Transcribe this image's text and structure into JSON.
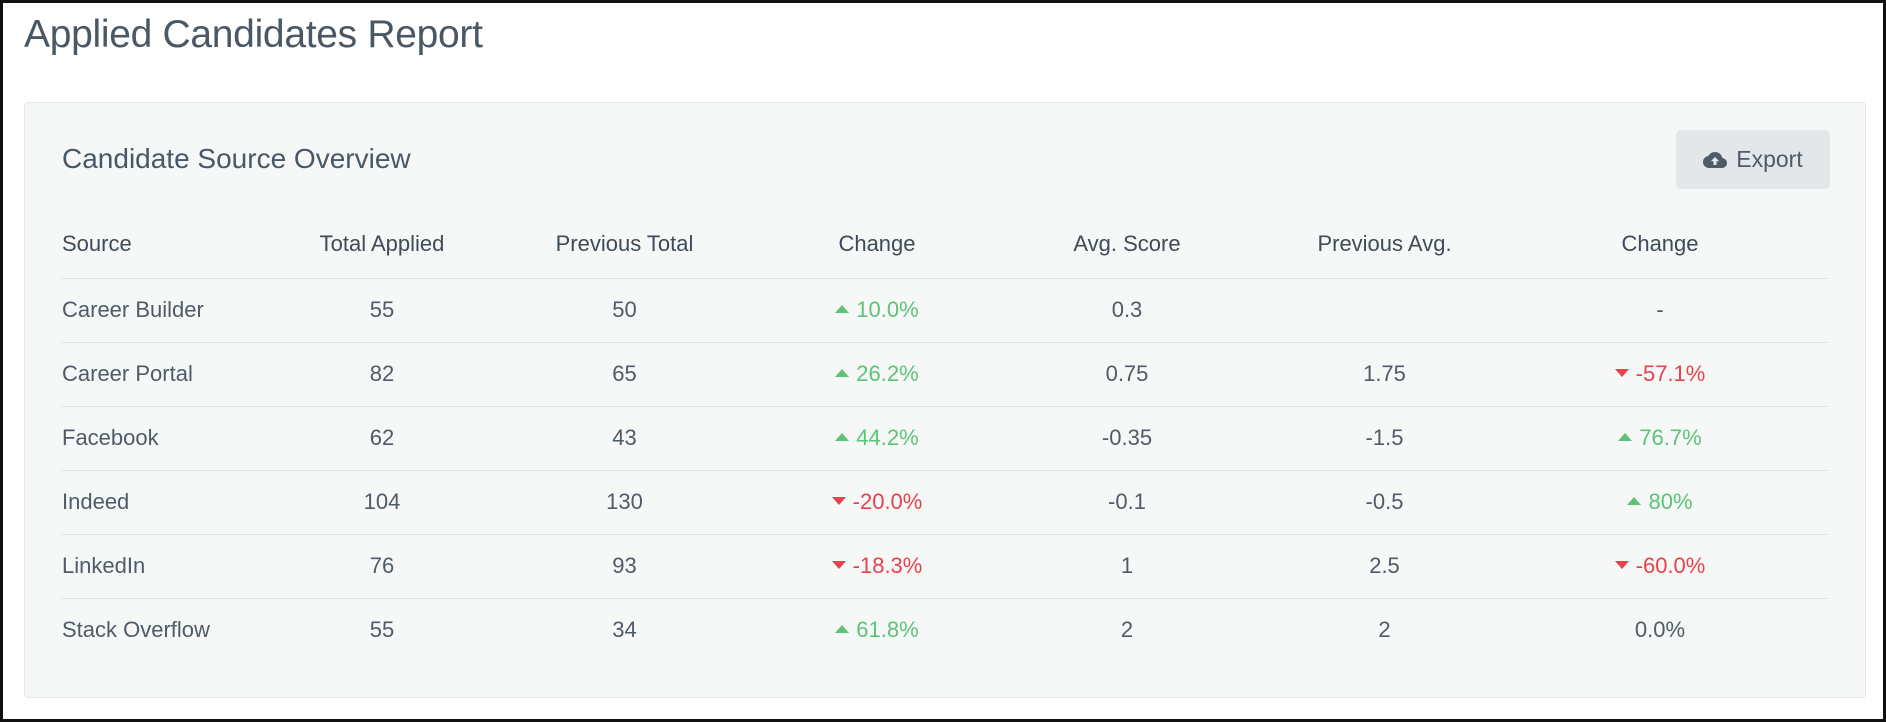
{
  "page": {
    "title": "Applied Candidates Report"
  },
  "panel": {
    "title": "Candidate Source Overview",
    "export_label": "Export"
  },
  "table": {
    "headers": [
      "Source",
      "Total Applied",
      "Previous Total",
      "Change",
      "Avg. Score",
      "Previous Avg.",
      "Change"
    ],
    "rows": [
      {
        "source": "Career Builder",
        "total": "55",
        "previous": "50",
        "change": "10.0%",
        "change_dir": "up",
        "avg": "0.3",
        "prev_avg": "",
        "avg_change": "-",
        "avg_change_dir": "none"
      },
      {
        "source": "Career Portal",
        "total": "82",
        "previous": "65",
        "change": "26.2%",
        "change_dir": "up",
        "avg": "0.75",
        "prev_avg": "1.75",
        "avg_change": "-57.1%",
        "avg_change_dir": "down"
      },
      {
        "source": "Facebook",
        "total": "62",
        "previous": "43",
        "change": "44.2%",
        "change_dir": "up",
        "avg": "-0.35",
        "prev_avg": "-1.5",
        "avg_change": "76.7%",
        "avg_change_dir": "up"
      },
      {
        "source": "Indeed",
        "total": "104",
        "previous": "130",
        "change": "-20.0%",
        "change_dir": "down",
        "avg": "-0.1",
        "prev_avg": "-0.5",
        "avg_change": "80%",
        "avg_change_dir": "up"
      },
      {
        "source": "LinkedIn",
        "total": "76",
        "previous": "93",
        "change": "-18.3%",
        "change_dir": "down",
        "avg": "1",
        "prev_avg": "2.5",
        "avg_change": "-60.0%",
        "avg_change_dir": "down"
      },
      {
        "source": "Stack Overflow",
        "total": "55",
        "previous": "34",
        "change": "61.8%",
        "change_dir": "up",
        "avg": "2",
        "prev_avg": "2",
        "avg_change": "0.0%",
        "avg_change_dir": "none"
      }
    ]
  },
  "colors": {
    "positive": "#5cc477",
    "negative": "#e8424a",
    "text": "#4f5b66",
    "panel_bg": "#f6f7f7"
  },
  "icons": {
    "export": "cloud-upload-icon",
    "up": "triangle-up-icon",
    "down": "triangle-down-icon"
  }
}
